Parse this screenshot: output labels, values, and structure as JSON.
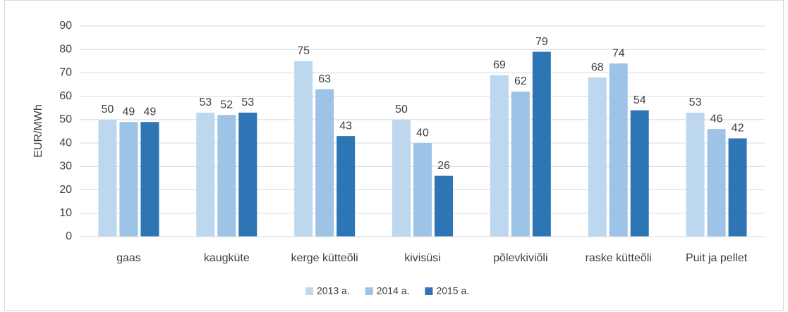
{
  "chart_data": {
    "type": "bar",
    "y_label": "EUR/MWh",
    "categories": [
      "gaas",
      "kaugküte",
      "kerge kütteõli",
      "kivisüsi",
      "põlevkiviõli",
      "raske kütteõli",
      "Puit ja pellet"
    ],
    "series": [
      {
        "name": "2013 a.",
        "color": "#bdd7ee",
        "values": [
          50,
          53,
          75,
          50,
          69,
          68,
          53
        ]
      },
      {
        "name": "2014 a.",
        "color": "#9dc3e6",
        "values": [
          49,
          52,
          63,
          40,
          62,
          74,
          46
        ]
      },
      {
        "name": "2015 a.",
        "color": "#2e75b6",
        "values": [
          49,
          53,
          43,
          26,
          79,
          54,
          42
        ]
      }
    ],
    "ylim": [
      0,
      90
    ],
    "yticks": [
      0,
      10,
      20,
      30,
      40,
      50,
      60,
      70,
      80,
      90
    ],
    "grid": true,
    "legend": "bottom"
  }
}
